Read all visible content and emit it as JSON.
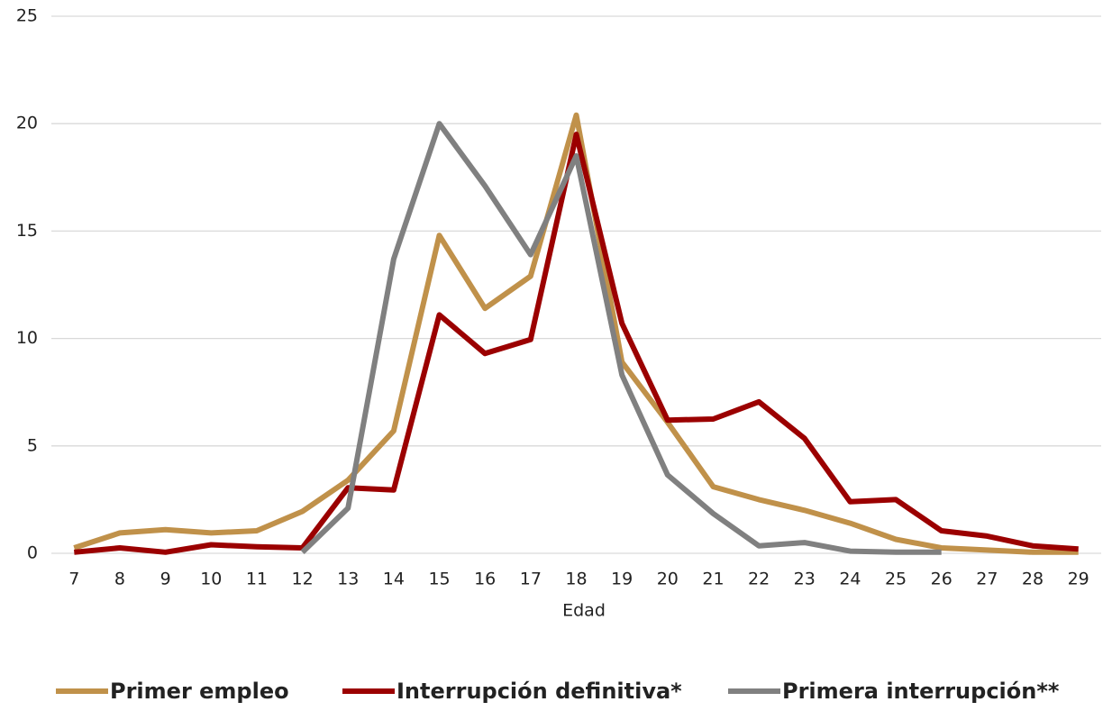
{
  "chart_data": {
    "type": "line",
    "x_label": "Edad",
    "categories": [
      "7",
      "8",
      "9",
      "10",
      "11",
      "12",
      "13",
      "14",
      "15",
      "16",
      "17",
      "18",
      "19",
      "20",
      "21",
      "22",
      "23",
      "24",
      "25",
      "26",
      "27",
      "28",
      "29"
    ],
    "series": [
      {
        "name": "Primer empleo",
        "color": "#c0914a",
        "values": [
          0.25,
          0.95,
          1.1,
          0.95,
          1.05,
          1.95,
          3.4,
          5.7,
          14.8,
          11.4,
          12.9,
          20.4,
          8.9,
          6.1,
          3.1,
          2.5,
          2.0,
          1.4,
          0.65,
          0.25,
          0.15,
          0.05,
          0.05
        ]
      },
      {
        "name": "Interrupción definitiva*",
        "color": "#9b0000",
        "values": [
          0.05,
          0.25,
          0.05,
          0.4,
          0.3,
          0.25,
          3.05,
          2.95,
          11.1,
          9.3,
          9.95,
          19.5,
          10.7,
          6.2,
          6.25,
          7.05,
          5.35,
          2.4,
          2.5,
          1.05,
          0.8,
          0.35,
          0.2
        ]
      },
      {
        "name": "Primera interrupción**",
        "color": "#808080",
        "values": [
          null,
          null,
          null,
          null,
          null,
          0.05,
          2.1,
          13.7,
          20.0,
          17.1,
          13.9,
          18.5,
          8.3,
          3.65,
          1.85,
          0.35,
          0.5,
          0.1,
          0.05,
          0.05,
          null,
          null,
          null
        ]
      }
    ],
    "ylim": [
      0,
      25
    ],
    "yticks": [
      0,
      5,
      10,
      15,
      20,
      25
    ],
    "grid": true,
    "legend": "bottom"
  }
}
